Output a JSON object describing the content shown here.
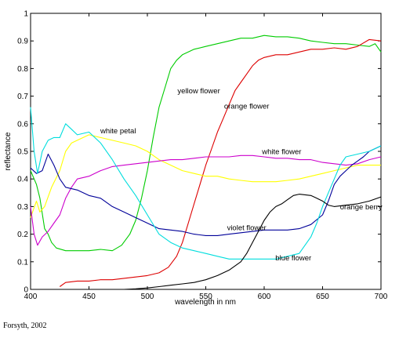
{
  "credit": "Forsyth, 2002",
  "chart_data": {
    "type": "line",
    "title": "",
    "xlabel": "wavelength in nm",
    "ylabel": "reflectance",
    "xlim": [
      400,
      700
    ],
    "ylim": [
      0,
      1
    ],
    "xticks": [
      400,
      450,
      500,
      550,
      600,
      650,
      700
    ],
    "yticks": [
      0,
      0.1,
      0.2,
      0.3,
      0.4,
      0.5,
      0.6,
      0.7,
      0.8,
      0.9,
      1
    ],
    "grid": false,
    "series": [
      {
        "name": "yellow flower",
        "color": "#00cc00",
        "points": [
          [
            400,
            0.43
          ],
          [
            405,
            0.38
          ],
          [
            408,
            0.33
          ],
          [
            412,
            0.22
          ],
          [
            415,
            0.2
          ],
          [
            418,
            0.17
          ],
          [
            422,
            0.15
          ],
          [
            430,
            0.14
          ],
          [
            440,
            0.14
          ],
          [
            450,
            0.14
          ],
          [
            460,
            0.145
          ],
          [
            470,
            0.14
          ],
          [
            478,
            0.16
          ],
          [
            485,
            0.2
          ],
          [
            490,
            0.25
          ],
          [
            495,
            0.33
          ],
          [
            500,
            0.43
          ],
          [
            505,
            0.55
          ],
          [
            510,
            0.66
          ],
          [
            515,
            0.73
          ],
          [
            520,
            0.8
          ],
          [
            525,
            0.83
          ],
          [
            530,
            0.85
          ],
          [
            535,
            0.86
          ],
          [
            540,
            0.87
          ],
          [
            550,
            0.88
          ],
          [
            560,
            0.89
          ],
          [
            570,
            0.9
          ],
          [
            580,
            0.91
          ],
          [
            590,
            0.91
          ],
          [
            600,
            0.92
          ],
          [
            610,
            0.915
          ],
          [
            620,
            0.915
          ],
          [
            630,
            0.91
          ],
          [
            640,
            0.9
          ],
          [
            650,
            0.895
          ],
          [
            660,
            0.89
          ],
          [
            670,
            0.89
          ],
          [
            680,
            0.885
          ],
          [
            690,
            0.88
          ],
          [
            695,
            0.89
          ],
          [
            700,
            0.86
          ]
        ]
      },
      {
        "name": "orange flower",
        "color": "#dd0000",
        "points": [
          [
            425,
            0.01
          ],
          [
            430,
            0.025
          ],
          [
            440,
            0.03
          ],
          [
            450,
            0.03
          ],
          [
            460,
            0.035
          ],
          [
            470,
            0.035
          ],
          [
            480,
            0.04
          ],
          [
            490,
            0.045
          ],
          [
            500,
            0.05
          ],
          [
            510,
            0.06
          ],
          [
            518,
            0.08
          ],
          [
            525,
            0.12
          ],
          [
            530,
            0.17
          ],
          [
            535,
            0.24
          ],
          [
            540,
            0.31
          ],
          [
            545,
            0.38
          ],
          [
            550,
            0.45
          ],
          [
            555,
            0.51
          ],
          [
            560,
            0.57
          ],
          [
            565,
            0.62
          ],
          [
            570,
            0.67
          ],
          [
            575,
            0.72
          ],
          [
            580,
            0.75
          ],
          [
            585,
            0.78
          ],
          [
            590,
            0.81
          ],
          [
            595,
            0.83
          ],
          [
            600,
            0.84
          ],
          [
            610,
            0.85
          ],
          [
            620,
            0.85
          ],
          [
            630,
            0.86
          ],
          [
            640,
            0.87
          ],
          [
            650,
            0.87
          ],
          [
            660,
            0.875
          ],
          [
            670,
            0.87
          ],
          [
            680,
            0.88
          ],
          [
            690,
            0.905
          ],
          [
            700,
            0.9
          ]
        ]
      },
      {
        "name": "white petal",
        "color": "#ffff00",
        "points": [
          [
            400,
            0.26
          ],
          [
            405,
            0.32
          ],
          [
            408,
            0.28
          ],
          [
            412,
            0.3
          ],
          [
            418,
            0.37
          ],
          [
            425,
            0.43
          ],
          [
            430,
            0.5
          ],
          [
            435,
            0.53
          ],
          [
            440,
            0.54
          ],
          [
            450,
            0.56
          ],
          [
            460,
            0.55
          ],
          [
            470,
            0.54
          ],
          [
            480,
            0.53
          ],
          [
            490,
            0.52
          ],
          [
            500,
            0.5
          ],
          [
            510,
            0.47
          ],
          [
            520,
            0.45
          ],
          [
            530,
            0.43
          ],
          [
            540,
            0.42
          ],
          [
            550,
            0.41
          ],
          [
            560,
            0.41
          ],
          [
            570,
            0.4
          ],
          [
            580,
            0.395
          ],
          [
            590,
            0.39
          ],
          [
            600,
            0.39
          ],
          [
            610,
            0.39
          ],
          [
            620,
            0.395
          ],
          [
            630,
            0.4
          ],
          [
            640,
            0.41
          ],
          [
            650,
            0.42
          ],
          [
            660,
            0.43
          ],
          [
            670,
            0.44
          ],
          [
            680,
            0.45
          ],
          [
            690,
            0.45
          ],
          [
            700,
            0.45
          ]
        ]
      },
      {
        "name": "white flower",
        "color": "#cc00cc",
        "points": [
          [
            400,
            0.3
          ],
          [
            403,
            0.2
          ],
          [
            406,
            0.16
          ],
          [
            410,
            0.19
          ],
          [
            415,
            0.21
          ],
          [
            420,
            0.24
          ],
          [
            425,
            0.27
          ],
          [
            430,
            0.33
          ],
          [
            435,
            0.37
          ],
          [
            440,
            0.4
          ],
          [
            450,
            0.41
          ],
          [
            460,
            0.43
          ],
          [
            470,
            0.445
          ],
          [
            480,
            0.45
          ],
          [
            490,
            0.455
          ],
          [
            500,
            0.46
          ],
          [
            510,
            0.465
          ],
          [
            520,
            0.47
          ],
          [
            530,
            0.47
          ],
          [
            540,
            0.475
          ],
          [
            550,
            0.48
          ],
          [
            560,
            0.48
          ],
          [
            570,
            0.48
          ],
          [
            580,
            0.485
          ],
          [
            590,
            0.485
          ],
          [
            600,
            0.48
          ],
          [
            610,
            0.475
          ],
          [
            620,
            0.475
          ],
          [
            630,
            0.47
          ],
          [
            640,
            0.47
          ],
          [
            650,
            0.46
          ],
          [
            660,
            0.455
          ],
          [
            670,
            0.45
          ],
          [
            680,
            0.455
          ],
          [
            690,
            0.47
          ],
          [
            700,
            0.48
          ]
        ]
      },
      {
        "name": "violet flower",
        "color": "#000099",
        "points": [
          [
            400,
            0.44
          ],
          [
            405,
            0.42
          ],
          [
            410,
            0.43
          ],
          [
            415,
            0.49
          ],
          [
            420,
            0.45
          ],
          [
            425,
            0.4
          ],
          [
            430,
            0.37
          ],
          [
            440,
            0.36
          ],
          [
            450,
            0.34
          ],
          [
            460,
            0.33
          ],
          [
            470,
            0.3
          ],
          [
            480,
            0.28
          ],
          [
            490,
            0.26
          ],
          [
            500,
            0.24
          ],
          [
            510,
            0.22
          ],
          [
            520,
            0.215
          ],
          [
            530,
            0.21
          ],
          [
            540,
            0.2
          ],
          [
            550,
            0.195
          ],
          [
            560,
            0.195
          ],
          [
            570,
            0.2
          ],
          [
            580,
            0.205
          ],
          [
            590,
            0.21
          ],
          [
            600,
            0.215
          ],
          [
            610,
            0.215
          ],
          [
            620,
            0.215
          ],
          [
            630,
            0.22
          ],
          [
            640,
            0.235
          ],
          [
            650,
            0.27
          ],
          [
            655,
            0.32
          ],
          [
            660,
            0.38
          ],
          [
            665,
            0.41
          ],
          [
            670,
            0.43
          ],
          [
            675,
            0.45
          ],
          [
            680,
            0.465
          ],
          [
            685,
            0.48
          ],
          [
            690,
            0.5
          ],
          [
            695,
            0.51
          ],
          [
            700,
            0.52
          ]
        ]
      },
      {
        "name": "blue flower",
        "color": "#00dddd",
        "points": [
          [
            400,
            0.66
          ],
          [
            403,
            0.5
          ],
          [
            406,
            0.42
          ],
          [
            410,
            0.5
          ],
          [
            415,
            0.54
          ],
          [
            420,
            0.55
          ],
          [
            425,
            0.55
          ],
          [
            430,
            0.6
          ],
          [
            435,
            0.58
          ],
          [
            440,
            0.56
          ],
          [
            450,
            0.57
          ],
          [
            460,
            0.53
          ],
          [
            470,
            0.47
          ],
          [
            480,
            0.4
          ],
          [
            490,
            0.34
          ],
          [
            500,
            0.27
          ],
          [
            510,
            0.2
          ],
          [
            520,
            0.17
          ],
          [
            530,
            0.15
          ],
          [
            540,
            0.14
          ],
          [
            550,
            0.13
          ],
          [
            560,
            0.12
          ],
          [
            570,
            0.11
          ],
          [
            580,
            0.11
          ],
          [
            590,
            0.11
          ],
          [
            600,
            0.11
          ],
          [
            610,
            0.11
          ],
          [
            620,
            0.12
          ],
          [
            630,
            0.13
          ],
          [
            640,
            0.19
          ],
          [
            645,
            0.24
          ],
          [
            650,
            0.3
          ],
          [
            655,
            0.35
          ],
          [
            660,
            0.4
          ],
          [
            665,
            0.45
          ],
          [
            670,
            0.48
          ],
          [
            680,
            0.49
          ],
          [
            690,
            0.5
          ],
          [
            700,
            0.52
          ]
        ]
      },
      {
        "name": "orange berry",
        "color": "#000000",
        "points": [
          [
            480,
            0.0
          ],
          [
            490,
            0.002
          ],
          [
            500,
            0.005
          ],
          [
            510,
            0.01
          ],
          [
            520,
            0.015
          ],
          [
            530,
            0.02
          ],
          [
            540,
            0.025
          ],
          [
            550,
            0.035
          ],
          [
            560,
            0.05
          ],
          [
            570,
            0.07
          ],
          [
            580,
            0.1
          ],
          [
            585,
            0.13
          ],
          [
            590,
            0.17
          ],
          [
            595,
            0.21
          ],
          [
            600,
            0.25
          ],
          [
            605,
            0.28
          ],
          [
            610,
            0.3
          ],
          [
            615,
            0.31
          ],
          [
            620,
            0.325
          ],
          [
            625,
            0.34
          ],
          [
            630,
            0.345
          ],
          [
            640,
            0.34
          ],
          [
            645,
            0.33
          ],
          [
            650,
            0.32
          ],
          [
            655,
            0.305
          ],
          [
            660,
            0.3
          ],
          [
            670,
            0.305
          ],
          [
            680,
            0.31
          ],
          [
            690,
            0.32
          ],
          [
            700,
            0.335
          ]
        ]
      }
    ],
    "annotations": [
      {
        "text": "yellow flower",
        "x": 544,
        "y": 0.71
      },
      {
        "text": "orange flower",
        "x": 585,
        "y": 0.655
      },
      {
        "text": "white petal",
        "x": 475,
        "y": 0.565
      },
      {
        "text": "white flower",
        "x": 615,
        "y": 0.49
      },
      {
        "text": "violet flower",
        "x": 585,
        "y": 0.215
      },
      {
        "text": "blue flower",
        "x": 625,
        "y": 0.105
      },
      {
        "text": "orange berry",
        "x": 683,
        "y": 0.29
      }
    ]
  }
}
